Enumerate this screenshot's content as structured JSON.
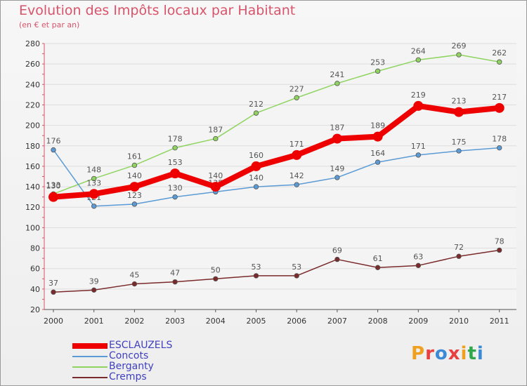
{
  "title": "Evolution des Impôts locaux par Habitant",
  "subtitle": "(en € et par an)",
  "logo": {
    "letters": [
      "P",
      "r",
      "o",
      "x",
      "i",
      "t",
      "i"
    ],
    "colors": [
      "#f0a020",
      "#e84040",
      "#3a8ad8",
      "#e84040",
      "#f0a020",
      "#2ea84a",
      "#3a8ad8"
    ]
  },
  "chart_data": {
    "type": "line",
    "x": [
      "2000",
      "2001",
      "2002",
      "2003",
      "2004",
      "2005",
      "2006",
      "2007",
      "2008",
      "2009",
      "2010",
      "2011"
    ],
    "ylim": [
      20,
      280
    ],
    "yticks": [
      20,
      40,
      60,
      80,
      100,
      120,
      140,
      160,
      180,
      200,
      220,
      240,
      260,
      280
    ],
    "grid": true,
    "legend_position": "bottom-left",
    "series": [
      {
        "name": "Berganty",
        "color": "#8fd460",
        "values": [
          133,
          148,
          161,
          178,
          187,
          212,
          227,
          241,
          253,
          264,
          269,
          262
        ]
      },
      {
        "name": "Concots",
        "color": "#5b9bd5",
        "values": [
          176,
          121,
          123,
          130,
          135,
          140,
          142,
          149,
          164,
          171,
          175,
          178
        ]
      },
      {
        "name": "Cremps",
        "color": "#7a2a2a",
        "values": [
          37,
          39,
          45,
          47,
          50,
          53,
          53,
          69,
          61,
          63,
          72,
          78
        ]
      },
      {
        "name": "ESCLAUZELS",
        "color": "#ee0000",
        "values": [
          130,
          133,
          140,
          153,
          140,
          160,
          171,
          187,
          189,
          219,
          213,
          217
        ]
      }
    ],
    "legend_order": [
      "ESCLAUZELS",
      "Concots",
      "Berganty",
      "Cremps"
    ]
  }
}
